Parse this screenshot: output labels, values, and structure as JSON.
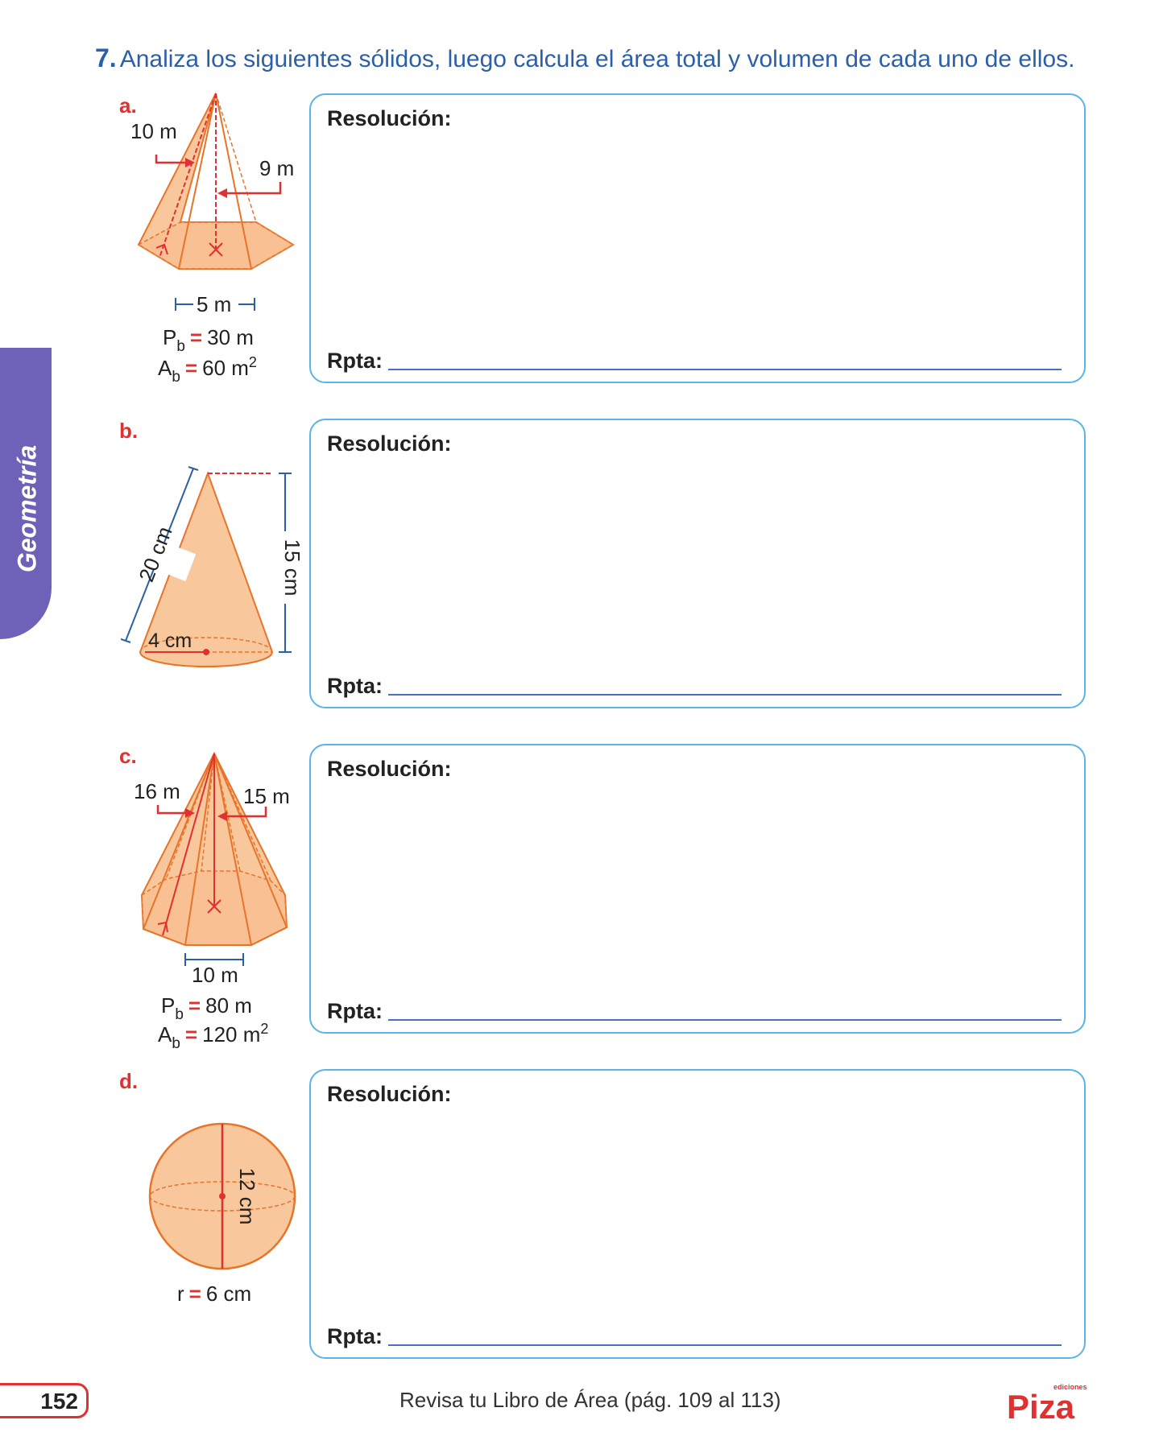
{
  "header": {
    "number": "7.",
    "instruction": "Analiza los siguientes sólidos, luego calcula el área total y volumen de cada uno de ellos."
  },
  "side_tab": {
    "label": "Geometría",
    "color": "#6e62b8"
  },
  "problems": [
    {
      "letter": "a.",
      "labels": [
        "10 m",
        "9 m",
        "5 m"
      ],
      "formula1": {
        "prefix": "P",
        "sub": "b",
        "eq": "=",
        "value": "30 m"
      },
      "formula2": {
        "prefix": "A",
        "sub": "b",
        "eq": "=",
        "value": "60 m",
        "sup": "2"
      }
    },
    {
      "letter": "b.",
      "labels": [
        "20 cm",
        "15 cm",
        "4 cm"
      ]
    },
    {
      "letter": "c.",
      "labels": [
        "16 m",
        "15 m",
        "10 m"
      ],
      "formula1": {
        "prefix": "P",
        "sub": "b",
        "eq": "=",
        "value": "80 m"
      },
      "formula2": {
        "prefix": "A",
        "sub": "b",
        "eq": "=",
        "value": "120 m",
        "sup": "2"
      }
    },
    {
      "letter": "d.",
      "labels": [
        "12 cm"
      ],
      "formula1": {
        "prefix": "r",
        "eq": "=",
        "value": "6 cm"
      }
    }
  ],
  "box": {
    "resolution_label": "Resolución:",
    "answer_label": "Rpta:"
  },
  "footer": {
    "page_number": "152",
    "note": "Revisa tu Libro de Área (pág. 109 al 113)",
    "brand": "Piza",
    "brand_tag": "ediciones"
  },
  "colors": {
    "accent_red": "#e03030",
    "box_border": "#5ab5e6",
    "title_blue": "#2b5fa8",
    "solid_fill": "#f9c79c",
    "solid_stroke": "#e8742a"
  }
}
